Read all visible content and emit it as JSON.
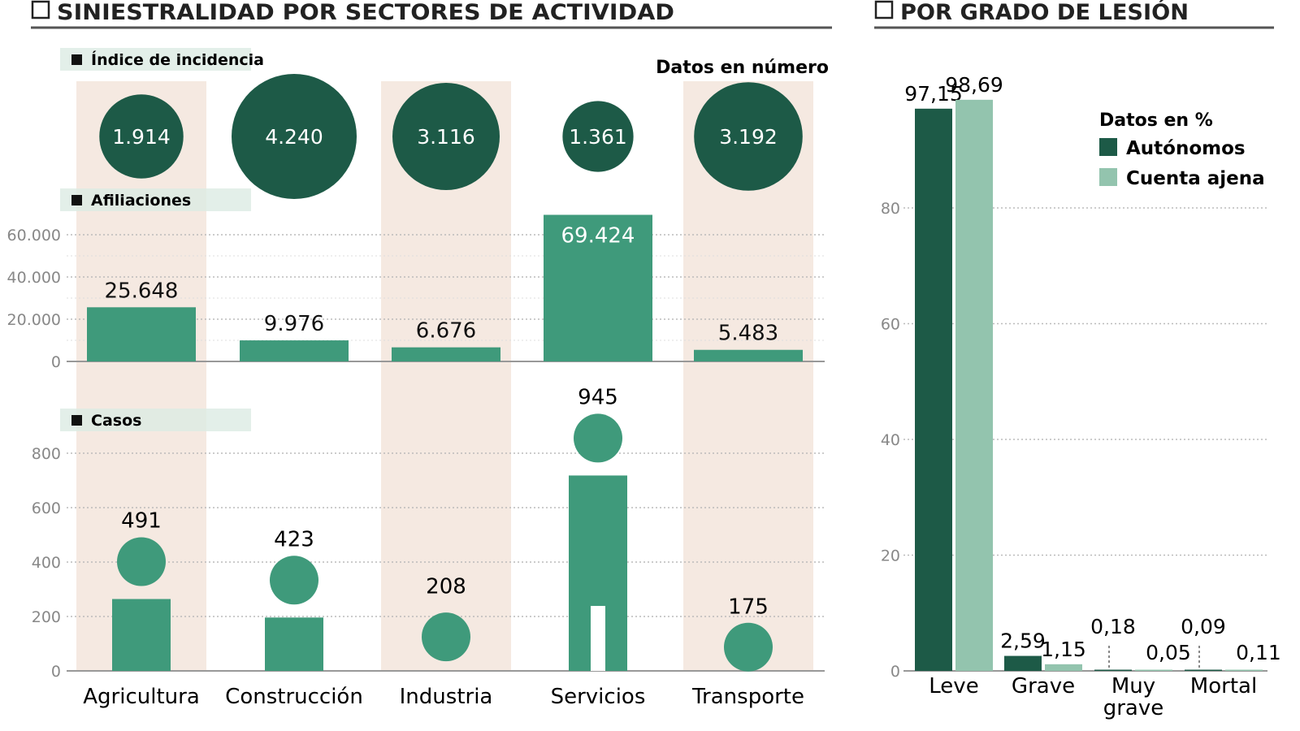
{
  "colors": {
    "dark": "#1d5a47",
    "mid": "#3f9a7b",
    "light": "#93c4ae",
    "band": "#f5e9e1",
    "grid": "#bbbbbb",
    "axis": "#888888"
  },
  "chart_data": [
    {
      "type": "bar",
      "title": "SINIESTRALIDAD POR SECTORES DE ACTIVIDAD",
      "note": "Datos en número",
      "categories": [
        "Agricultura",
        "Construcción",
        "Industria",
        "Servicios",
        "Transporte"
      ],
      "panels": [
        {
          "label": "Índice de incidencia",
          "type": "bubble",
          "values": [
            1914,
            4240,
            3116,
            1361,
            3192
          ],
          "value_labels": [
            "1.914",
            "4.240",
            "3.116",
            "1.361",
            "3.192"
          ]
        },
        {
          "label": "Afiliaciones",
          "type": "bar",
          "values": [
            25648,
            9976,
            6676,
            69424,
            5483
          ],
          "value_labels": [
            "25.648",
            "9.976",
            "6.676",
            "69.424",
            "5.483"
          ],
          "ylim": [
            0,
            60000
          ],
          "yticks": [
            0,
            20000,
            40000,
            60000
          ],
          "ytick_labels": [
            "0",
            "20.000",
            "40.000",
            "60.000"
          ]
        },
        {
          "label": "Casos",
          "type": "pictogram",
          "values": [
            491,
            423,
            208,
            945,
            175
          ],
          "value_labels": [
            "491",
            "423",
            "208",
            "945",
            "175"
          ],
          "ylim": [
            0,
            800
          ],
          "yticks": [
            0,
            200,
            400,
            600,
            800
          ],
          "ytick_labels": [
            "0",
            "200",
            "400",
            "600",
            "800"
          ]
        }
      ]
    },
    {
      "type": "bar",
      "title": "POR GRADO DE LESIÓN",
      "note": "Datos en %",
      "categories": [
        "Leve",
        "Grave",
        "Muy grave",
        "Mortal"
      ],
      "series": [
        {
          "name": "Autónomos",
          "values": [
            97.15,
            2.59,
            0.18,
            0.09
          ],
          "value_labels": [
            "97,15",
            "2,59",
            "0,18",
            "0,09"
          ]
        },
        {
          "name": "Cuenta ajena",
          "values": [
            98.69,
            1.15,
            0.05,
            0.11
          ],
          "value_labels": [
            "98,69",
            "1,15",
            "0,05",
            "0,11"
          ]
        }
      ],
      "ylim": [
        0,
        100
      ],
      "yticks": [
        0,
        20,
        40,
        60,
        80
      ],
      "grid": true,
      "legend": "top-right"
    }
  ]
}
